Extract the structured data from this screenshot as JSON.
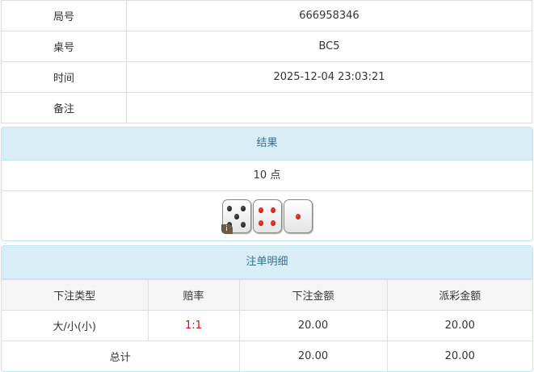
{
  "info": [
    {
      "label": "局号",
      "value": "666958346"
    },
    {
      "label": "桌号",
      "value": "BC5"
    },
    {
      "label": "时间",
      "value": "2025-12-04 23:03:21"
    },
    {
      "label": "备注",
      "value": ""
    }
  ],
  "result": {
    "title": "结果",
    "points": "10 点",
    "dice": [
      5,
      4,
      1
    ],
    "info_badge": "i"
  },
  "bets": {
    "title": "注单明细",
    "headers": [
      "下注类型",
      "赔率",
      "下注金额",
      "派彩金额"
    ],
    "rows": [
      {
        "type": "大/小(小)",
        "odds": "1:1",
        "amount": "20.00",
        "payout": "20.00"
      }
    ],
    "total": {
      "label": "总计",
      "amount": "20.00",
      "payout": "20.00"
    }
  },
  "colors": {
    "header_bg": "#d9edf7",
    "odds": "#e00000"
  }
}
